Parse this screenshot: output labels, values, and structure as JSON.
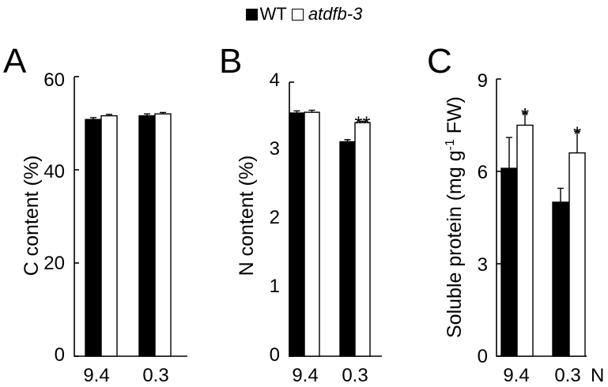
{
  "legend": {
    "items": [
      {
        "label": "WT",
        "color": "#000000"
      },
      {
        "label": "atdfb-3",
        "color": "#ffffff"
      }
    ]
  },
  "chart_data": [
    {
      "type": "bar",
      "panel": "A",
      "ylabel": "C content (%)",
      "ylim": [
        0,
        60
      ],
      "yticks": [
        "0",
        "20",
        "40",
        "60"
      ],
      "categories": [
        "9.4",
        "0.3"
      ],
      "xunit": "",
      "series": [
        {
          "name": "WT",
          "color": "#000000",
          "values": [
            50.8,
            51.6
          ],
          "errors": [
            0.4,
            0.4
          ]
        },
        {
          "name": "atdfb-3",
          "color": "#ffffff",
          "values": [
            51.6,
            52.0
          ],
          "errors": [
            0.3,
            0.3
          ]
        }
      ],
      "annotations": [
        "",
        ""
      ]
    },
    {
      "type": "bar",
      "panel": "B",
      "ylabel": "N content (%)",
      "ylim": [
        0,
        4
      ],
      "yticks": [
        "0",
        "1",
        "2",
        "3",
        "4"
      ],
      "categories": [
        "9.4",
        "0.3"
      ],
      "xunit": "",
      "series": [
        {
          "name": "WT",
          "color": "#000000",
          "values": [
            3.55,
            3.13
          ],
          "errors": [
            0.03,
            0.03
          ]
        },
        {
          "name": "atdfb-3",
          "color": "#ffffff",
          "values": [
            3.56,
            3.41
          ],
          "errors": [
            0.03,
            0.02
          ]
        }
      ],
      "annotations": [
        "",
        "**"
      ]
    },
    {
      "type": "bar",
      "panel": "C",
      "ylabel": "Soluble protein (mg g-1 FW)",
      "ylabel_main": "Soluble protein (mg g",
      "ylabel_sup": "-1",
      "ylabel_end": " FW)",
      "ylim": [
        0,
        9
      ],
      "yticks": [
        "0",
        "3",
        "6",
        "9"
      ],
      "categories": [
        "9.4",
        "0.3"
      ],
      "xunit": "N",
      "series": [
        {
          "name": "WT",
          "color": "#000000",
          "values": [
            6.1,
            5.0
          ],
          "errors": [
            1.0,
            0.45
          ]
        },
        {
          "name": "atdfb-3",
          "color": "#ffffff",
          "values": [
            7.5,
            6.6
          ],
          "errors": [
            0.4,
            0.7
          ]
        }
      ],
      "annotations": [
        "*",
        "*"
      ]
    }
  ]
}
